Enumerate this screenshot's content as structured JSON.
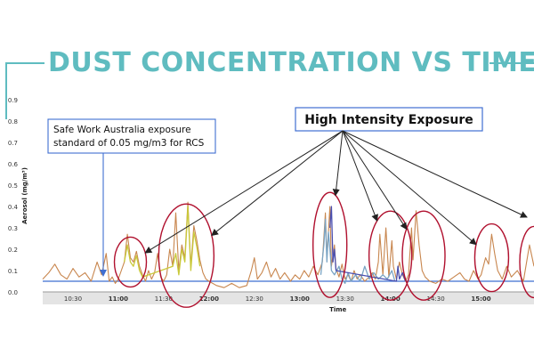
{
  "page": {
    "title": "DUST CONCENTRATION VS TIME",
    "accent_color": "#5fbcc0"
  },
  "chart_data": {
    "type": "line",
    "xlabel": "Time",
    "ylabel": "Aerosol (mg/m³)",
    "ylim": [
      0,
      0.9
    ],
    "yticks": [
      "0.0",
      "0.1",
      "0.2",
      "0.3",
      "0.4",
      "0.5",
      "0.6",
      "0.7",
      "0.8",
      "0.9"
    ],
    "xlim": [
      "10:10",
      "15:35"
    ],
    "xticks": [
      {
        "t": "10:30",
        "label": "10:30",
        "bold": false
      },
      {
        "t": "11:00",
        "label": "11:00",
        "bold": true
      },
      {
        "t": "11:30",
        "label": "11:30",
        "bold": false
      },
      {
        "t": "12:00",
        "label": "12:00",
        "bold": true
      },
      {
        "t": "12:30",
        "label": "12:30",
        "bold": false
      },
      {
        "t": "13:00",
        "label": "13:00",
        "bold": true
      },
      {
        "t": "13:30",
        "label": "13:30",
        "bold": false
      },
      {
        "t": "14:00",
        "label": "14:00",
        "bold": true
      },
      {
        "t": "14:30",
        "label": "14:30",
        "bold": false
      },
      {
        "t": "15:00",
        "label": "15:00",
        "bold": true
      }
    ],
    "grid": false,
    "exposure_standard": {
      "value": 0.05,
      "color": "#3f6fd1"
    },
    "series": [
      {
        "color": "#c8864e",
        "points": [
          [
            "10:10",
            0.06
          ],
          [
            "10:14",
            0.09
          ],
          [
            "10:18",
            0.13
          ],
          [
            "10:22",
            0.08
          ],
          [
            "10:26",
            0.06
          ],
          [
            "10:30",
            0.11
          ],
          [
            "10:34",
            0.07
          ],
          [
            "10:38",
            0.09
          ],
          [
            "10:42",
            0.05
          ],
          [
            "10:46",
            0.14
          ],
          [
            "10:49",
            0.08
          ],
          [
            "10:52",
            0.18
          ],
          [
            "10:54",
            0.05
          ],
          [
            "10:56",
            0.07
          ],
          [
            "10:58",
            0.04
          ],
          [
            "11:00",
            0.06
          ],
          [
            "11:02",
            0.1
          ],
          [
            "11:04",
            0.14
          ],
          [
            "11:06",
            0.27
          ],
          [
            "11:08",
            0.16
          ],
          [
            "11:10",
            0.14
          ],
          [
            "11:12",
            0.19
          ],
          [
            "11:14",
            0.12
          ],
          [
            "11:16",
            0.08
          ],
          [
            "11:18",
            0.05
          ],
          [
            "11:20",
            0.1
          ],
          [
            "11:22",
            0.06
          ],
          [
            "11:24",
            0.09
          ],
          [
            "11:26",
            0.18
          ],
          [
            "11:28",
            0.07
          ],
          [
            "11:30",
            0.05
          ],
          [
            "11:32",
            0.08
          ],
          [
            "11:34",
            0.2
          ],
          [
            "11:36",
            0.12
          ],
          [
            "11:38",
            0.37
          ],
          [
            "11:40",
            0.1
          ],
          [
            "11:42",
            0.22
          ],
          [
            "11:44",
            0.16
          ],
          [
            "11:46",
            0.42
          ],
          [
            "11:48",
            0.12
          ],
          [
            "11:50",
            0.31
          ],
          [
            "11:52",
            0.24
          ],
          [
            "11:54",
            0.15
          ],
          [
            "11:56",
            0.09
          ],
          [
            "11:58",
            0.06
          ],
          [
            "12:00",
            0.05
          ],
          [
            "12:05",
            0.03
          ],
          [
            "12:10",
            0.02
          ],
          [
            "12:15",
            0.04
          ],
          [
            "12:20",
            0.02
          ],
          [
            "12:25",
            0.03
          ],
          [
            "12:28",
            0.1
          ],
          [
            "12:30",
            0.16
          ],
          [
            "12:32",
            0.06
          ],
          [
            "12:35",
            0.09
          ],
          [
            "12:38",
            0.14
          ],
          [
            "12:41",
            0.07
          ],
          [
            "12:44",
            0.11
          ],
          [
            "12:47",
            0.06
          ],
          [
            "12:50",
            0.09
          ],
          [
            "12:54",
            0.05
          ],
          [
            "12:57",
            0.08
          ],
          [
            "13:00",
            0.06
          ],
          [
            "13:03",
            0.1
          ],
          [
            "13:06",
            0.07
          ],
          [
            "13:09",
            0.12
          ],
          [
            "13:12",
            0.08
          ],
          [
            "13:15",
            0.14
          ],
          [
            "13:17",
            0.37
          ],
          [
            "13:18",
            0.16
          ],
          [
            "13:20",
            0.4
          ],
          [
            "13:21",
            0.12
          ],
          [
            "13:23",
            0.22
          ],
          [
            "13:24",
            0.11
          ],
          [
            "13:26",
            0.07
          ],
          [
            "13:28",
            0.13
          ],
          [
            "13:30",
            0.06
          ],
          [
            "13:32",
            0.08
          ],
          [
            "13:34",
            0.05
          ],
          [
            "13:36",
            0.1
          ],
          [
            "13:38",
            0.06
          ],
          [
            "13:40",
            0.08
          ],
          [
            "13:43",
            0.05
          ],
          [
            "13:46",
            0.07
          ],
          [
            "13:48",
            0.09
          ],
          [
            "13:50",
            0.06
          ],
          [
            "13:52",
            0.14
          ],
          [
            "13:53",
            0.27
          ],
          [
            "13:55",
            0.08
          ],
          [
            "13:57",
            0.3
          ],
          [
            "13:59",
            0.07
          ],
          [
            "14:01",
            0.24
          ],
          [
            "14:02",
            0.12
          ],
          [
            "14:04",
            0.06
          ],
          [
            "14:06",
            0.14
          ],
          [
            "14:08",
            0.08
          ],
          [
            "14:10",
            0.05
          ],
          [
            "14:12",
            0.08
          ],
          [
            "14:14",
            0.3
          ],
          [
            "14:15",
            0.15
          ],
          [
            "14:17",
            0.38
          ],
          [
            "14:19",
            0.22
          ],
          [
            "14:21",
            0.1
          ],
          [
            "14:23",
            0.07
          ],
          [
            "14:26",
            0.05
          ],
          [
            "14:30",
            0.04
          ],
          [
            "14:34",
            0.06
          ],
          [
            "14:38",
            0.05
          ],
          [
            "14:42",
            0.07
          ],
          [
            "14:46",
            0.09
          ],
          [
            "14:49",
            0.06
          ],
          [
            "14:52",
            0.05
          ],
          [
            "14:55",
            0.1
          ],
          [
            "14:58",
            0.06
          ],
          [
            "15:00",
            0.08
          ],
          [
            "15:03",
            0.16
          ],
          [
            "15:05",
            0.13
          ],
          [
            "15:07",
            0.27
          ],
          [
            "15:09",
            0.18
          ],
          [
            "15:11",
            0.1
          ],
          [
            "15:14",
            0.06
          ],
          [
            "15:17",
            0.12
          ],
          [
            "15:20",
            0.07
          ],
          [
            "15:24",
            0.1
          ],
          [
            "15:28",
            0.05
          ],
          [
            "15:32",
            0.22
          ],
          [
            "15:35",
            0.12
          ]
        ]
      },
      {
        "color": "#c9c93a",
        "points": [
          [
            "11:04",
            0.14
          ],
          [
            "11:06",
            0.22
          ],
          [
            "11:08",
            0.14
          ],
          [
            "11:10",
            0.12
          ],
          [
            "11:12",
            0.17
          ],
          [
            "11:14",
            0.1
          ],
          [
            "11:16",
            0.07
          ],
          [
            "11:36",
            0.12
          ],
          [
            "11:38",
            0.18
          ],
          [
            "11:40",
            0.08
          ],
          [
            "11:42",
            0.2
          ],
          [
            "11:44",
            0.14
          ],
          [
            "11:46",
            0.4
          ],
          [
            "11:48",
            0.1
          ],
          [
            "11:50",
            0.28
          ],
          [
            "11:52",
            0.21
          ],
          [
            "11:54",
            0.12
          ]
        ]
      },
      {
        "color": "#7aa4c4",
        "points": [
          [
            "13:14",
            0.08
          ],
          [
            "13:16",
            0.22
          ],
          [
            "13:17",
            0.34
          ],
          [
            "13:18",
            0.14
          ],
          [
            "13:19",
            0.28
          ],
          [
            "13:20",
            0.2
          ],
          [
            "13:21",
            0.1
          ],
          [
            "13:23",
            0.08
          ],
          [
            "13:26",
            0.12
          ],
          [
            "13:28",
            0.06
          ],
          [
            "13:30",
            0.04
          ],
          [
            "13:32",
            0.09
          ],
          [
            "13:34",
            0.05
          ],
          [
            "13:37",
            0.08
          ],
          [
            "13:40",
            0.05
          ],
          [
            "13:43",
            0.12
          ],
          [
            "13:46",
            0.06
          ],
          [
            "13:49",
            0.09
          ],
          [
            "13:52",
            0.06
          ],
          [
            "13:55",
            0.08
          ],
          [
            "13:58",
            0.06
          ],
          [
            "14:01",
            0.1
          ],
          [
            "14:03",
            0.05
          ]
        ]
      },
      {
        "color": "#4a4fb0",
        "points": [
          [
            "13:20",
            0.3
          ],
          [
            "13:21",
            0.4
          ],
          [
            "13:22",
            0.14
          ],
          [
            "13:23",
            0.2
          ],
          [
            "13:24",
            0.1
          ],
          [
            "14:04",
            0.05
          ],
          [
            "14:05",
            0.12
          ],
          [
            "14:06",
            0.06
          ],
          [
            "14:08",
            0.09
          ],
          [
            "14:10",
            0.05
          ]
        ]
      }
    ],
    "annotations": [
      {
        "text": "High Intensity Exposure"
      },
      {
        "text_lines": [
          "Safe Work Australia exposure",
          "standard of 0.05 mg/m3 for RCS"
        ]
      }
    ],
    "highlights": [
      {
        "center_t": "11:08",
        "center_v": 0.14
      },
      {
        "center_t": "11:45",
        "center_v": 0.17
      },
      {
        "center_t": "13:20",
        "center_v": 0.22
      },
      {
        "center_t": "14:00",
        "center_v": 0.17
      },
      {
        "center_t": "14:22",
        "center_v": 0.17
      },
      {
        "center_t": "15:07",
        "center_v": 0.16
      },
      {
        "center_t": "15:35",
        "center_v": 0.14
      }
    ]
  }
}
